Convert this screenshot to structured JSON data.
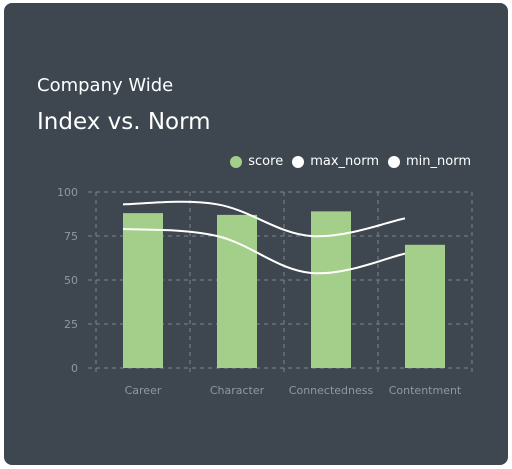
{
  "header": {
    "subtitle": "Company Wide",
    "title": "Index vs. Norm"
  },
  "colors": {
    "card_background": "#3e4750",
    "score": "#a3cf8a",
    "norm_line": "#ffffff",
    "grid": "#7b848c",
    "axis_text": "#8f989f"
  },
  "chart_data": {
    "type": "bar",
    "categories": [
      "Career",
      "Character",
      "Connectedness",
      "Contentment"
    ],
    "series": [
      {
        "name": "score",
        "type": "bar",
        "values": [
          88,
          87,
          89,
          70
        ],
        "color": "#a3cf8a"
      },
      {
        "name": "max_norm",
        "type": "line",
        "values": [
          93,
          93,
          75,
          85
        ],
        "color": "#ffffff"
      },
      {
        "name": "min_norm",
        "type": "line",
        "values": [
          79,
          75,
          54,
          65
        ],
        "color": "#ffffff"
      }
    ],
    "ylim": [
      0,
      100
    ],
    "yticks": [
      "0",
      "25",
      "50",
      "75",
      "100"
    ],
    "grid": true,
    "legend_position": "top-right"
  }
}
